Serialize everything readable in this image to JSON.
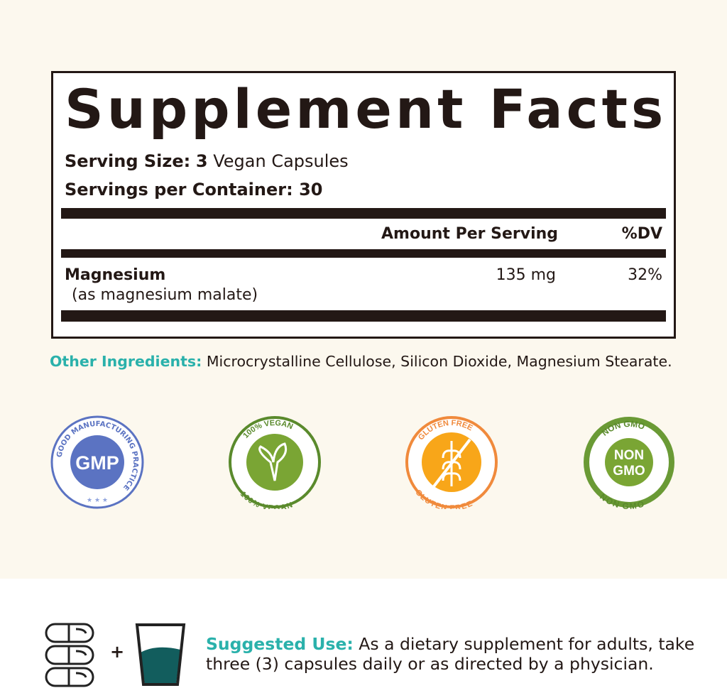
{
  "label": {
    "title": "Supplement Facts",
    "serving_size_label": "Serving Size:",
    "serving_size_qty": "3",
    "serving_size_unit": "Vegan Capsules",
    "servings_label": "Servings per Container:",
    "servings_value": "30",
    "col_amount": "Amount Per Serving",
    "col_dv": "%DV",
    "nutrient": "Magnesium",
    "nutrient_source": "(as magnesium malate)",
    "amount": "135 mg",
    "dv": "32%"
  },
  "other": {
    "label": "Other Ingredients:",
    "text": "Microcrystalline Cellulose, Silicon Dioxide, Magnesium Stearate."
  },
  "badges": [
    {
      "icon": "gmp-badge-icon",
      "center": "GMP",
      "ring": "GOOD MANUFACTURING PRACTICE",
      "color": "#5b73c2"
    },
    {
      "icon": "vegan-badge-icon",
      "ring": "100% VEGAN",
      "color": "#7aa534"
    },
    {
      "icon": "gluten-free-badge-icon",
      "ring": "GLUTEN FREE",
      "color": "#f08a3c"
    },
    {
      "icon": "non-gmo-badge-icon",
      "center": "NON GMO",
      "ring": "NON GMO",
      "color": "#6a9a35"
    }
  ],
  "use": {
    "plus": "+",
    "label": "Suggested Use:",
    "line1": "As a dietary supplement for adults, take",
    "line2": "three (3) capsules  daily or as directed by a physician."
  },
  "colors": {
    "accent": "#2ab1ab",
    "ink": "#231815",
    "background": "#fcf8ee",
    "water": "#125d5d"
  }
}
